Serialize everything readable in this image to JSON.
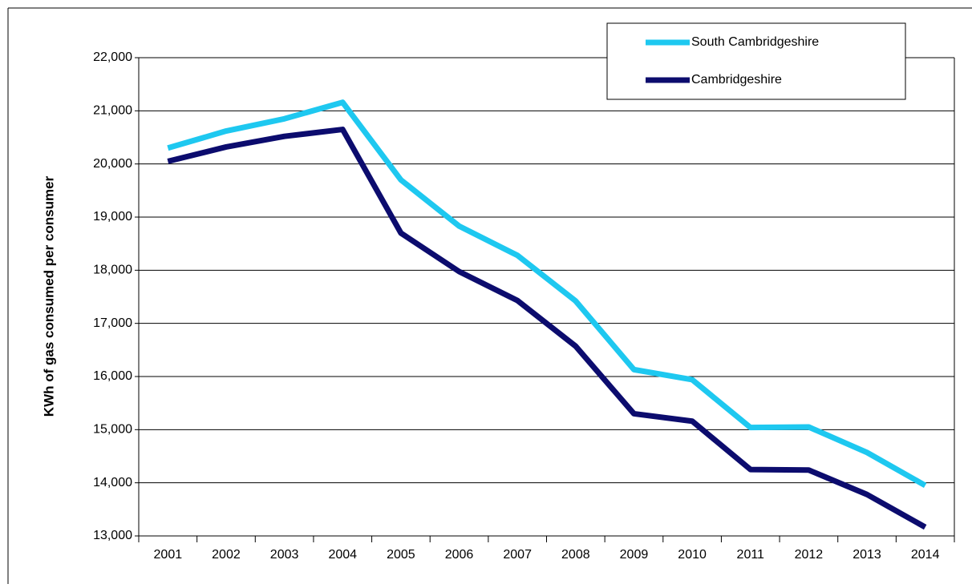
{
  "chart_data": {
    "type": "line",
    "y_label": "KWh of gas consumed per consumer",
    "categories": [
      "2001",
      "2002",
      "2003",
      "2004",
      "2005",
      "2006",
      "2007",
      "2008",
      "2009",
      "2010",
      "2011",
      "2012",
      "2013",
      "2014"
    ],
    "series": [
      {
        "name": "South Cambridgeshire",
        "color": "#1ec8f0",
        "values": [
          20300,
          20620,
          20850,
          21160,
          19700,
          18830,
          18280,
          17420,
          16130,
          15940,
          15040,
          15050,
          14570,
          13950
        ]
      },
      {
        "name": "Cambridgeshire",
        "color": "#0c0c6e",
        "values": [
          20050,
          20320,
          20520,
          20650,
          18700,
          17975,
          17430,
          16570,
          15300,
          15160,
          14250,
          14240,
          13780,
          13165
        ]
      }
    ],
    "ylim": [
      13000,
      22000
    ],
    "yticks": [
      {
        "value": 13000,
        "label": "13,000"
      },
      {
        "value": 14000,
        "label": "14,000"
      },
      {
        "value": 15000,
        "label": "15,000"
      },
      {
        "value": 16000,
        "label": "16,000"
      },
      {
        "value": 17000,
        "label": "17,000"
      },
      {
        "value": 18000,
        "label": "18,000"
      },
      {
        "value": 19000,
        "label": "19,000"
      },
      {
        "value": 20000,
        "label": "20,000"
      },
      {
        "value": 21000,
        "label": "21,000"
      },
      {
        "value": 22000,
        "label": "22,000"
      }
    ],
    "grid": true,
    "legend": "upper right"
  }
}
